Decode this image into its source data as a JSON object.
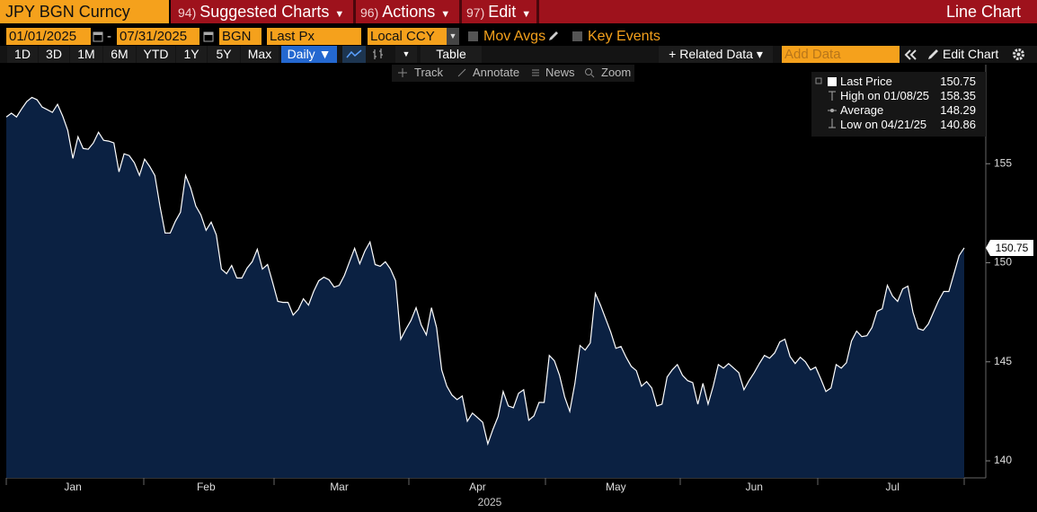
{
  "header": {
    "security": "JPY BGN Curncy",
    "menus": [
      {
        "key": "94)",
        "label": "Suggested Charts"
      },
      {
        "key": "96)",
        "label": "Actions"
      },
      {
        "key": "97)",
        "label": "Edit"
      }
    ],
    "view": "Line Chart"
  },
  "controls": {
    "start_date": "01/01/2025",
    "date_separator": "-",
    "end_date": "07/31/2025",
    "source": "BGN",
    "field": "Last Px",
    "currency": "Local CCY",
    "mov_avgs": "Mov Avgs",
    "key_events": "Key Events"
  },
  "toolbar": {
    "ranges": [
      "1D",
      "3D",
      "1M",
      "6M",
      "YTD",
      "1Y",
      "5Y",
      "Max"
    ],
    "frequency": "Daily ▼",
    "table": "Table",
    "related": "+ Related Data ▾",
    "add_data": "Add Data",
    "edit_chart": "Edit Chart"
  },
  "tools": [
    "Track",
    "Annotate",
    "News",
    "Zoom"
  ],
  "chart_data": {
    "type": "line",
    "categories": [
      null,
      null,
      null,
      null,
      null,
      null,
      null,
      null,
      null,
      null,
      null,
      null,
      null,
      "Jan",
      null,
      null,
      null,
      null,
      null,
      null,
      null,
      null,
      null,
      null,
      null,
      null,
      null,
      null,
      null,
      null,
      null,
      null,
      null,
      null,
      null,
      null,
      null,
      null,
      null,
      "Feb",
      null,
      null,
      null,
      null,
      null,
      null,
      null,
      null,
      null,
      null,
      null,
      null,
      null,
      null,
      null,
      null,
      null,
      null,
      null,
      null,
      null,
      null,
      null,
      null,
      null,
      "Mar",
      null,
      null,
      null,
      null,
      null,
      null,
      null,
      null,
      null,
      null,
      null,
      null,
      null,
      null,
      null,
      null,
      null,
      null,
      null,
      null,
      null,
      null,
      null,
      null,
      null,
      null,
      "Apr",
      null,
      null,
      null,
      null,
      null,
      null,
      null,
      null,
      null,
      null,
      null,
      null,
      null,
      null,
      null,
      null,
      null,
      null,
      null,
      null,
      null,
      null,
      null,
      null,
      null,
      null,
      "May",
      null,
      null,
      null,
      null,
      null,
      null,
      null,
      null,
      null,
      null,
      null,
      null,
      null,
      null,
      null,
      null,
      null,
      null,
      null,
      null,
      null,
      null,
      null,
      null,
      null,
      null,
      "Jun",
      null,
      null,
      null,
      null,
      null,
      null,
      null,
      null,
      null,
      null,
      null,
      null,
      null,
      null,
      null,
      null,
      null,
      null,
      null,
      null,
      null,
      null,
      null,
      null,
      null,
      null,
      "Jul",
      null,
      null,
      null,
      null,
      null,
      null,
      null,
      null,
      null,
      null,
      null,
      null,
      null,
      null
    ],
    "series": [
      {
        "name": "Last Price",
        "color": "#ffffff",
        "values": [
          157.36,
          157.55,
          157.36,
          157.77,
          158.14,
          158.35,
          158.23,
          157.86,
          157.73,
          157.59,
          158.0,
          157.41,
          156.68,
          155.27,
          156.36,
          155.77,
          155.73,
          156.05,
          156.59,
          156.18,
          156.14,
          156.05,
          154.59,
          155.5,
          155.41,
          155.05,
          154.41,
          155.23,
          154.86,
          154.41,
          152.86,
          151.5,
          151.5,
          152.09,
          152.55,
          154.41,
          153.77,
          152.86,
          152.41,
          151.64,
          152.05,
          151.41,
          149.68,
          149.45,
          149.86,
          149.23,
          149.23,
          149.73,
          150.05,
          150.68,
          149.68,
          149.91,
          149.0,
          148.05,
          148.0,
          148.0,
          147.36,
          147.64,
          148.18,
          147.86,
          148.55,
          149.09,
          149.27,
          149.14,
          148.77,
          148.86,
          149.36,
          150.05,
          150.73,
          149.95,
          150.59,
          151.05,
          149.91,
          149.82,
          150.05,
          149.68,
          149.09,
          146.14,
          146.64,
          147.09,
          147.73,
          146.86,
          146.36,
          147.73,
          146.73,
          144.59,
          143.77,
          143.32,
          143.09,
          143.27,
          142.0,
          142.41,
          142.18,
          141.95,
          140.86,
          141.59,
          142.23,
          143.5,
          142.77,
          142.68,
          143.41,
          143.59,
          142.05,
          142.27,
          142.95,
          142.95,
          145.32,
          145.05,
          144.32,
          143.23,
          142.5,
          143.91,
          145.82,
          145.59,
          145.95,
          148.45,
          147.86,
          147.18,
          146.5,
          145.68,
          145.77,
          145.23,
          144.77,
          144.55,
          143.77,
          144.0,
          143.68,
          142.77,
          142.86,
          144.23,
          144.59,
          144.86,
          144.32,
          144.05,
          143.95,
          142.86,
          143.91,
          142.86,
          143.77,
          144.86,
          144.68,
          144.91,
          144.68,
          144.45,
          143.59,
          144.05,
          144.45,
          144.91,
          145.32,
          145.18,
          145.45,
          146.0,
          146.14,
          145.27,
          144.91,
          145.23,
          145.0,
          144.59,
          144.73,
          144.14,
          143.5,
          143.68,
          144.86,
          144.68,
          144.95,
          146.05,
          146.55,
          146.27,
          146.32,
          146.73,
          147.55,
          147.68,
          148.86,
          148.32,
          148.05,
          148.68,
          148.82,
          147.5,
          146.68,
          146.59,
          146.91,
          147.5,
          148.09,
          148.55,
          148.55,
          149.45,
          150.36,
          150.75
        ]
      }
    ],
    "fill": "#0b2142",
    "ylim": [
      139.14,
      160
    ],
    "yticks": [
      140,
      145,
      150,
      155
    ],
    "grid": false,
    "xlabel": "2025",
    "legend": {
      "position": "upper right",
      "stats": [
        {
          "label": "High on 01/08/25",
          "value": 158.35
        },
        {
          "label": "Average",
          "value": 148.29
        },
        {
          "label": "Low on 04/21/25",
          "value": 140.86
        }
      ]
    }
  }
}
